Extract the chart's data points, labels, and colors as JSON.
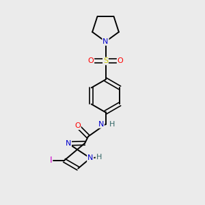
{
  "bg_color": "#ebebeb",
  "atom_colors": {
    "C": "#000000",
    "N": "#0000cc",
    "O": "#ff0000",
    "S": "#cccc00",
    "I": "#cc00cc",
    "H": "#336666"
  },
  "bond_color": "#000000",
  "figsize": [
    3.0,
    3.0
  ],
  "dpi": 100,
  "xlim": [
    0,
    10
  ],
  "ylim": [
    0,
    10
  ]
}
